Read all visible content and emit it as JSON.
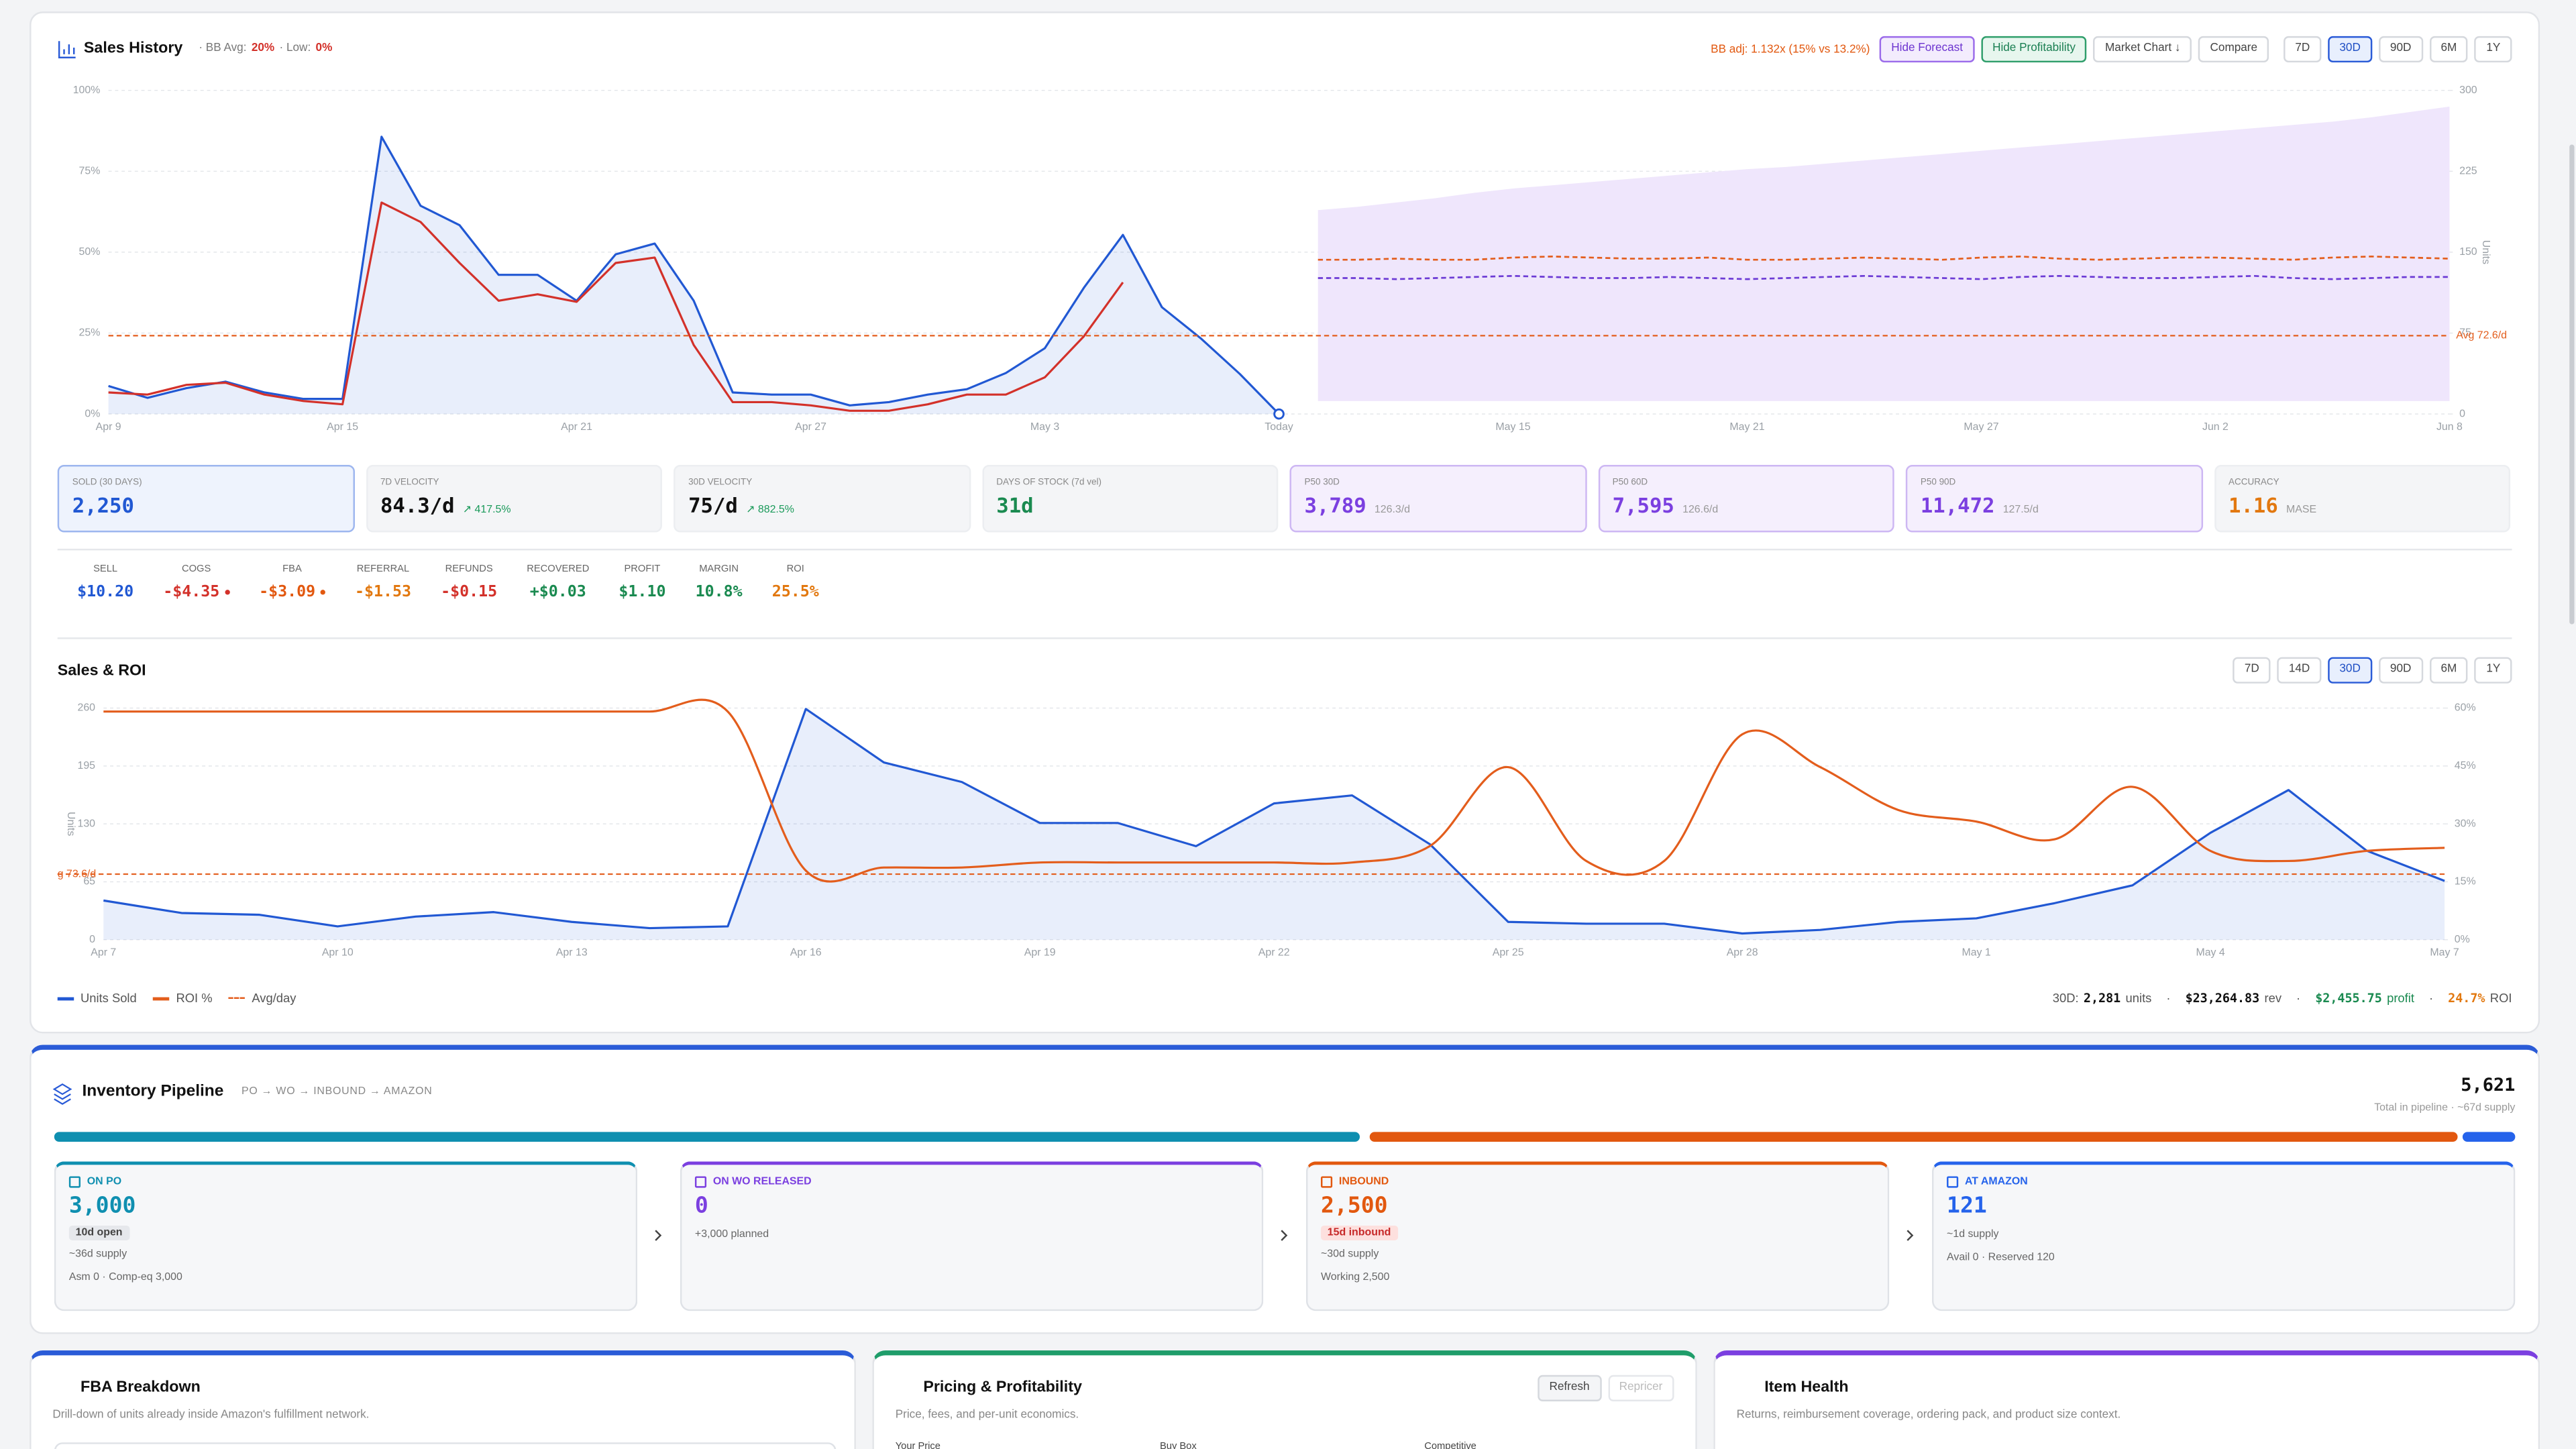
{
  "header": {
    "title": "Sales History",
    "bb_avg_label": "· BB Avg:",
    "bb_avg": "20%",
    "low_label": "· Low:",
    "low": "0%",
    "bb_adj": "BB adj: 1.132x (15% vs 13.2%)",
    "buttons": [
      "Hide Forecast",
      "Hide Profitability",
      "Market Chart ↓",
      "Compare"
    ],
    "ranges": [
      "7D",
      "30D",
      "90D",
      "6M",
      "1Y"
    ],
    "active": 1
  },
  "sales_history": {
    "type": "line",
    "categories": [
      "Apr 9",
      null,
      null,
      null,
      null,
      null,
      "Apr 15",
      null,
      null,
      null,
      null,
      null,
      "Apr 21",
      null,
      null,
      null,
      null,
      null,
      "Apr 27",
      null,
      null,
      null,
      null,
      null,
      "May 3",
      null,
      null,
      null,
      null,
      null,
      "Today",
      null,
      null,
      null,
      null,
      null,
      "May 15",
      null,
      null,
      null,
      null,
      null,
      "May 21",
      null,
      null,
      null,
      null,
      null,
      "May 27",
      null,
      null,
      null,
      null,
      null,
      "Jun 2",
      null,
      null,
      null,
      null,
      null,
      "Jun 8"
    ],
    "series": [
      {
        "color": "#2158d3",
        "fill": true,
        "axis": "y2",
        "values": [
          26,
          15,
          24,
          30,
          20,
          14,
          14,
          257,
          193,
          175,
          129,
          129,
          105,
          148,
          158,
          105,
          20,
          18,
          18,
          8,
          11,
          18,
          23,
          38,
          61,
          117,
          166,
          99,
          70,
          37,
          0,
          null,
          null,
          null,
          null,
          null,
          null,
          null,
          null,
          null,
          null,
          null,
          null,
          null,
          null,
          null,
          null,
          null,
          null,
          null,
          null,
          null,
          null,
          null,
          null,
          null,
          null,
          null,
          null,
          null,
          null
        ]
      },
      {
        "color": "#d3312a",
        "axis": "y2",
        "values": [
          20,
          18,
          27,
          29,
          18,
          12,
          9,
          196,
          178,
          140,
          105,
          111,
          104,
          140,
          145,
          64,
          11,
          11,
          8,
          3,
          3,
          9,
          18,
          18,
          34,
          72,
          122,
          null,
          null,
          null,
          null,
          null,
          null,
          null,
          null,
          null,
          null,
          null,
          null,
          null,
          null,
          null,
          null,
          null,
          null,
          null,
          null,
          null,
          null,
          null,
          null,
          null,
          null,
          null,
          null,
          null,
          null,
          null,
          null,
          null,
          null
        ]
      }
    ],
    "forecast": {
      "color": "#efe6fc",
      "upper": [
        null,
        null,
        null,
        null,
        null,
        null,
        null,
        null,
        null,
        null,
        null,
        null,
        null,
        null,
        null,
        null,
        null,
        null,
        null,
        null,
        null,
        null,
        null,
        null,
        null,
        null,
        null,
        null,
        null,
        null,
        null,
        189,
        192,
        196,
        200,
        205,
        209,
        212,
        215,
        218,
        221,
        224,
        227,
        229,
        232,
        235,
        238,
        241,
        244,
        247,
        250,
        253,
        256,
        259,
        262,
        265,
        268,
        271,
        275,
        280,
        285
      ],
      "lower": [
        null,
        null,
        null,
        null,
        null,
        null,
        null,
        null,
        null,
        null,
        null,
        null,
        null,
        null,
        null,
        null,
        null,
        null,
        null,
        null,
        null,
        null,
        null,
        null,
        null,
        null,
        null,
        null,
        null,
        null,
        null,
        12,
        12,
        12,
        12,
        12,
        12,
        12,
        12,
        12,
        12,
        12,
        12,
        12,
        12,
        12,
        12,
        12,
        12,
        12,
        12,
        12,
        12,
        12,
        12,
        12,
        12,
        12,
        12,
        12,
        12
      ],
      "lines": [
        {
          "color": "#e35d1c",
          "values": [
            null,
            null,
            null,
            null,
            null,
            null,
            null,
            null,
            null,
            null,
            null,
            null,
            null,
            null,
            null,
            null,
            null,
            null,
            null,
            null,
            null,
            null,
            null,
            null,
            null,
            null,
            null,
            null,
            null,
            null,
            null,
            143,
            143,
            144,
            143,
            143,
            145,
            146,
            145,
            144,
            144,
            145,
            143,
            143,
            144,
            145,
            144,
            143,
            145,
            146,
            144,
            143,
            144,
            145,
            145,
            144,
            143,
            145,
            146,
            145,
            144
          ]
        },
        {
          "color": "#6c3bd5",
          "values": [
            null,
            null,
            null,
            null,
            null,
            null,
            null,
            null,
            null,
            null,
            null,
            null,
            null,
            null,
            null,
            null,
            null,
            null,
            null,
            null,
            null,
            null,
            null,
            null,
            null,
            null,
            null,
            null,
            null,
            null,
            null,
            126,
            126,
            125,
            126,
            127,
            128,
            127,
            126,
            126,
            127,
            126,
            125,
            126,
            127,
            128,
            127,
            126,
            125,
            127,
            128,
            127,
            126,
            126,
            127,
            128,
            126,
            125,
            126,
            127,
            127
          ]
        }
      ]
    },
    "avg": {
      "value": 72.6,
      "label": "Avg 72.6/d",
      "color": "#e35d1c"
    },
    "ylim": [
      0,
      100
    ],
    "yticks": [
      {
        "value": 0,
        "label": "0%"
      },
      {
        "value": 25,
        "label": "25%"
      },
      {
        "value": 50,
        "label": "50%"
      },
      {
        "value": 75,
        "label": "75%"
      },
      {
        "value": 100,
        "label": "100%"
      }
    ],
    "y2lim": [
      0,
      300
    ],
    "y2ticks": [
      0,
      75,
      150,
      225,
      300
    ],
    "y2_label": "Units",
    "grid": true
  },
  "metrics": [
    {
      "label": "SOLD (30 DAYS)",
      "value": "2,250",
      "color": "#2158d3",
      "tint": "blue"
    },
    {
      "label": "7D VELOCITY",
      "value": "84.3/d",
      "sub": "↗ 417.5%",
      "color": "#111111",
      "sub_color": "#1a9a5a"
    },
    {
      "label": "30D VELOCITY",
      "value": "75/d",
      "sub": "↗ 882.5%",
      "color": "#111111",
      "sub_color": "#1a9a5a"
    },
    {
      "label": "DAYS OF STOCK (7d vel)",
      "value": "31d",
      "color": "#1a8a50"
    },
    {
      "label": "P50 30D",
      "value": "3,789",
      "sub": "126.3/d",
      "color": "#7b3fe0",
      "sub_color": "#999999",
      "tint": "purple"
    },
    {
      "label": "P50 60D",
      "value": "7,595",
      "sub": "126.6/d",
      "color": "#7b3fe0",
      "sub_color": "#999999",
      "tint": "purple"
    },
    {
      "label": "P50 90D",
      "value": "11,472",
      "sub": "127.5/d",
      "color": "#7b3fe0",
      "sub_color": "#999999",
      "tint": "purple"
    },
    {
      "label": "ACCURACY",
      "value": "1.16",
      "sub": "MASE",
      "color": "#e2780f",
      "sub_color": "#999999"
    }
  ],
  "profit": [
    {
      "label": "SELL",
      "value": "$10.20",
      "color": "#2158d3"
    },
    {
      "label": "COGS",
      "value": "-$4.35",
      "color": "#d3312a",
      "dot": true
    },
    {
      "label": "FBA",
      "value": "-$3.09",
      "color": "#e2580f",
      "dot": true
    },
    {
      "label": "REFERRAL",
      "value": "-$1.53",
      "color": "#e2780f"
    },
    {
      "label": "REFUNDS",
      "value": "-$0.15",
      "color": "#d3312a"
    },
    {
      "label": "RECOVERED",
      "value": "+$0.03",
      "color": "#1a8a50"
    },
    {
      "label": "PROFIT",
      "value": "$1.10",
      "color": "#1a8a50"
    },
    {
      "label": "MARGIN",
      "value": "10.8%",
      "color": "#1a8a50"
    },
    {
      "label": "ROI",
      "value": "25.5%",
      "color": "#e2780f"
    }
  ],
  "sales_roi": {
    "type": "line",
    "title": "Sales & ROI",
    "ranges": [
      "7D",
      "14D",
      "30D",
      "90D",
      "6M",
      "1Y"
    ],
    "active": 2,
    "categories": [
      "Apr 7",
      null,
      null,
      "Apr 10",
      null,
      null,
      "Apr 13",
      null,
      null,
      "Apr 16",
      null,
      null,
      "Apr 19",
      null,
      null,
      "Apr 22",
      null,
      null,
      "Apr 25",
      null,
      null,
      "Apr 28",
      null,
      null,
      "May 1",
      null,
      null,
      "May 4",
      null,
      null,
      "May 7"
    ],
    "series": [
      {
        "name": "Units Sold",
        "color": "#2158d3",
        "fill": true,
        "values": [
          44,
          30,
          28,
          15,
          26,
          31,
          20,
          13,
          15,
          259,
          199,
          177,
          131,
          131,
          105,
          153,
          162,
          107,
          20,
          18,
          18,
          7,
          11,
          20,
          24,
          41,
          61,
          120,
          168,
          100,
          66
        ]
      },
      {
        "name": "ROI %",
        "color": "#e35d1c",
        "axis": "y2",
        "smooth": true,
        "values": [
          59.1,
          59.1,
          59.1,
          59.1,
          59.1,
          59.1,
          59.1,
          59.1,
          59.1,
          17.9,
          18.7,
          18.7,
          20,
          20,
          20,
          20,
          20,
          24.3,
          44.7,
          20.4,
          20.4,
          53.2,
          44.7,
          33.6,
          30.6,
          26,
          39.6,
          23,
          20.4,
          23,
          23.8
        ]
      }
    ],
    "avg": {
      "name": "Avg/day",
      "value": 73.6,
      "label": "g 73.6/d",
      "color": "#e35d1c"
    },
    "ylim": [
      0,
      260
    ],
    "yticks": [
      0,
      65,
      130,
      195,
      260
    ],
    "y_label": "Units",
    "y2lim": [
      0,
      60
    ],
    "y2ticks": [
      {
        "value": 0,
        "label": "0%"
      },
      {
        "value": 15,
        "label": "15%"
      },
      {
        "value": 30,
        "label": "30%"
      },
      {
        "value": 45,
        "label": "45%"
      },
      {
        "value": 60,
        "label": "60%"
      }
    ],
    "grid": true,
    "summary": {
      "prefix": "30D:",
      "units": "2,281",
      "units_label": "units",
      "separator": "·",
      "rev": "$23,264.83",
      "rev_label": "rev",
      "profit": "$2,455.75",
      "profit_label": "profit",
      "roi": "24.7%",
      "roi_label": "ROI"
    }
  },
  "inventory": {
    "title": "Inventory Pipeline",
    "subtitle": "PO → WO → INBOUND → AMAZON",
    "total": "5,621",
    "total_note": "Total in pipeline · ~67d supply",
    "stages": [
      {
        "label": "ON PO",
        "value": 3000,
        "value_label": "3,000",
        "color": "#0f8fb0",
        "badge": "10d open",
        "lines": [
          "~36d supply",
          "Asm 0 · Comp-eq 3,000"
        ]
      },
      {
        "label": "ON WO RELEASED",
        "value": 0,
        "color": "#7b3fe0",
        "lines": [
          "+3,000 planned"
        ]
      },
      {
        "label": "INBOUND",
        "value": 2500,
        "value_label": "2,500",
        "color": "#e2580f",
        "badge": "15d inbound",
        "lines": [
          "~30d supply",
          "Working 2,500"
        ]
      },
      {
        "label": "AT AMAZON",
        "value": 121,
        "color": "#2563eb",
        "lines": [
          "~1d supply",
          "Avail 0 · Reserved 120"
        ]
      }
    ]
  },
  "cards": [
    {
      "title": "FBA Breakdown",
      "subtitle": "Drill-down of units already inside Amazon's fulfillment network.",
      "color": "#2a5bd7"
    },
    {
      "title": "Pricing & Profitability",
      "subtitle": "Price, fees, and per-unit economics.",
      "color": "#1f9d6a",
      "buttons": [
        "Refresh",
        "Repricer"
      ],
      "fields": [
        "Your Price",
        "Buy Box",
        "Competitive"
      ]
    },
    {
      "title": "Item Health",
      "subtitle": "Returns, reimbursement coverage, ordering pack, and product size context.",
      "color": "#7b3fe0"
    }
  ]
}
